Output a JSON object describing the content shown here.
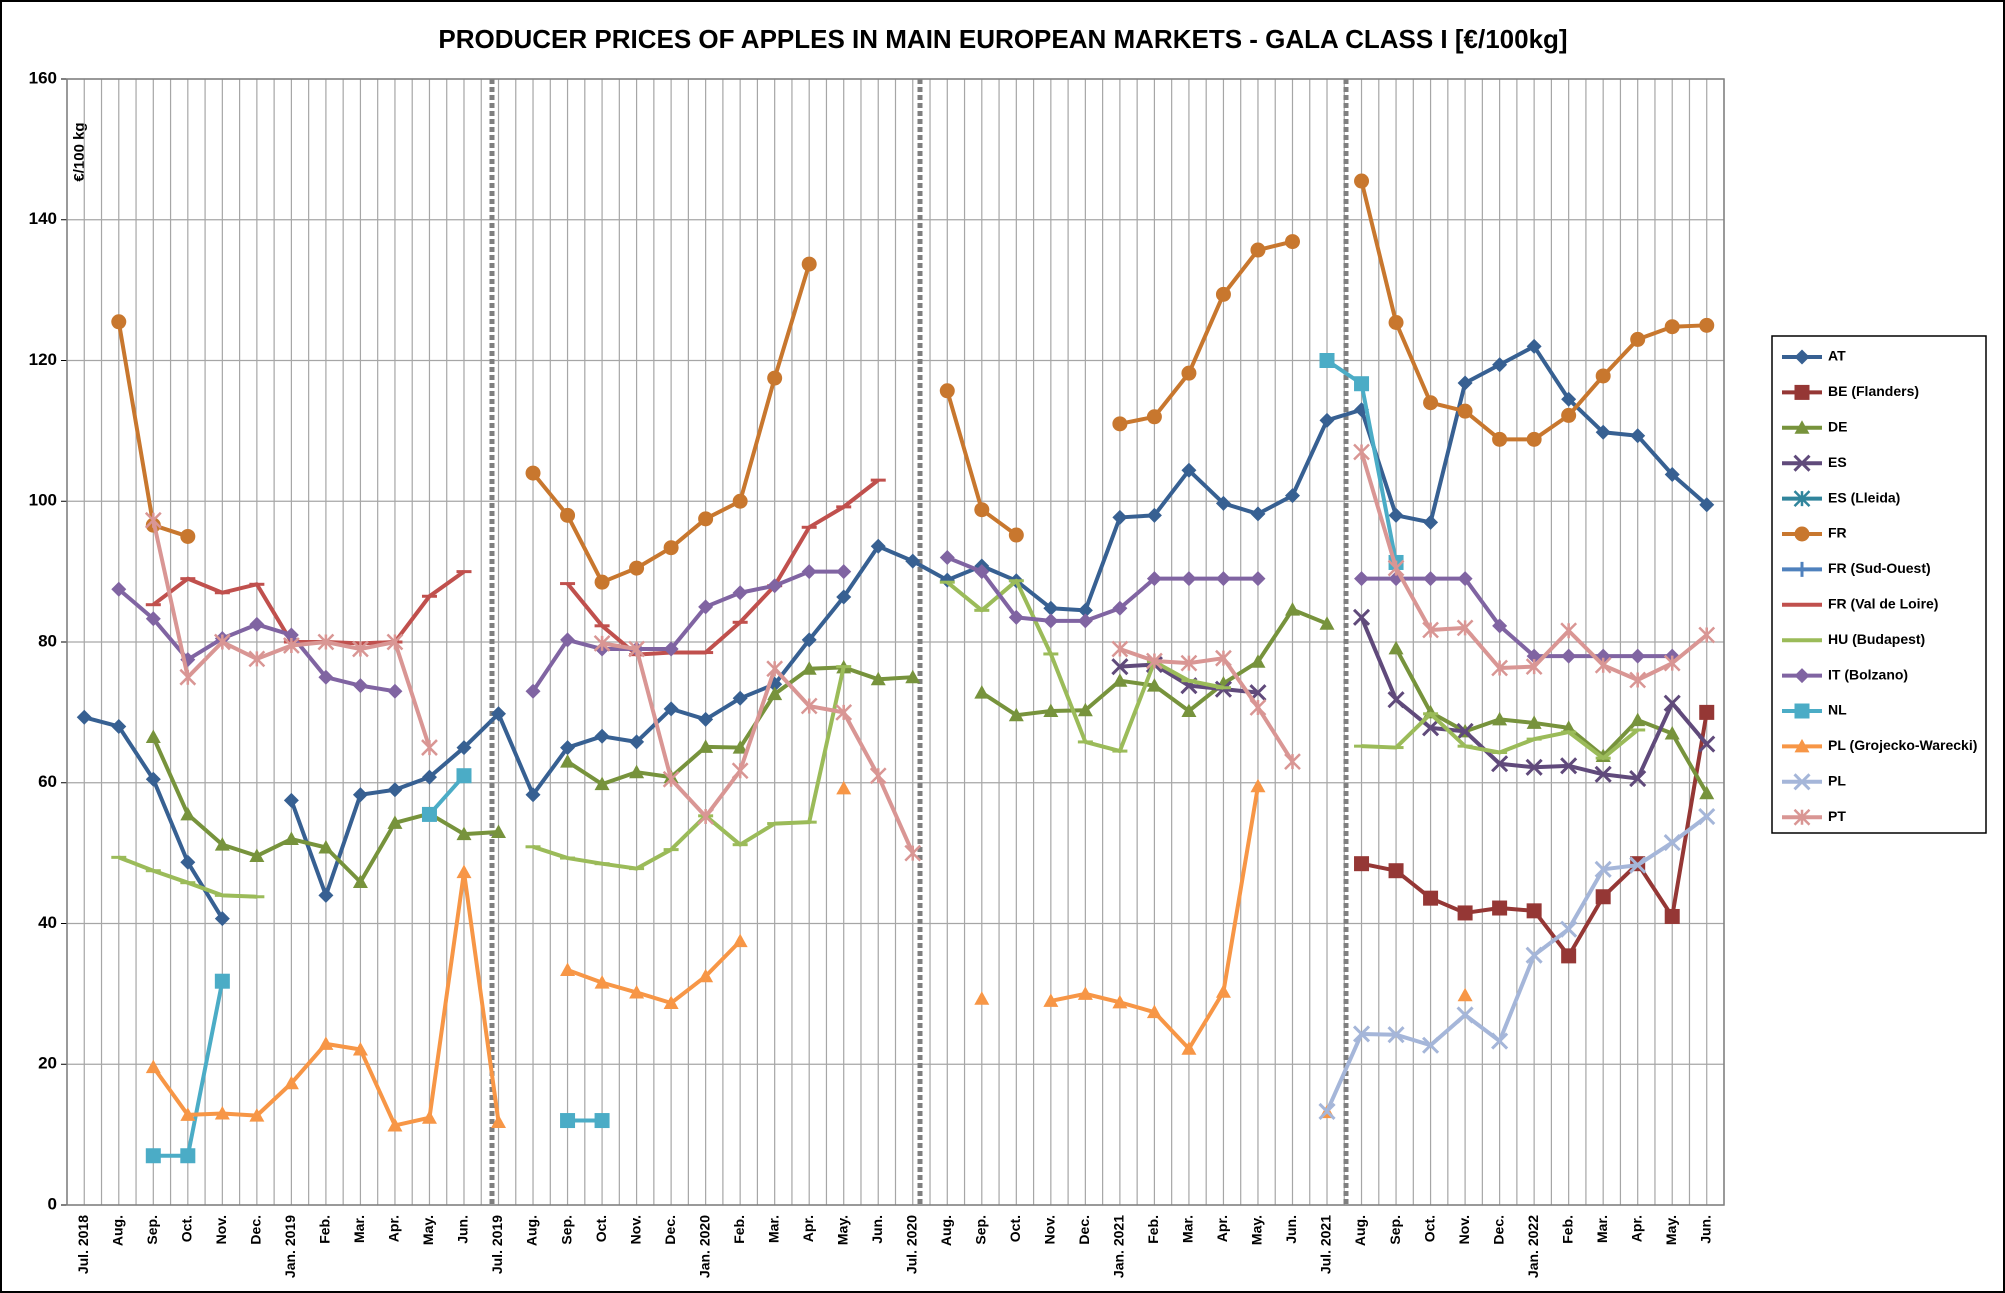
{
  "chart_data": {
    "type": "line",
    "title": "PRODUCER PRICES OF APPLES IN MAIN EUROPEAN MARKETS - GALA CLASS I [€/100kg]",
    "y_label": "€/100 kg",
    "categories": [
      "Jul. 2018",
      "Aug.",
      "Sep.",
      "Oct.",
      "Nov.",
      "Dec.",
      "Jan. 2019",
      "Feb.",
      "Mar.",
      "Apr.",
      "May.",
      "Jun.",
      "Jul. 2019",
      "Aug.",
      "Sep.",
      "Oct.",
      "Nov.",
      "Dec.",
      "Jan. 2020",
      "Feb.",
      "Mar.",
      "Apr.",
      "May.",
      "Jun.",
      "Jul. 2020",
      "Aug.",
      "Sep.",
      "Oct.",
      "Nov.",
      "Dec.",
      "Jan. 2021",
      "Feb.",
      "Mar.",
      "Apr.",
      "May.",
      "Jun.",
      "Jul. 2021",
      "Aug.",
      "Sep.",
      "Oct.",
      "Nov.",
      "Dec.",
      "Jan. 2022",
      "Feb.",
      "Mar.",
      "Apr.",
      "May.",
      "Jun."
    ],
    "ylim": [
      0,
      160
    ],
    "yticks": [
      0,
      20,
      40,
      60,
      80,
      100,
      120,
      140,
      160
    ],
    "grid": true,
    "legend": "right",
    "series": [
      {
        "name": "AT",
        "color": "#376092",
        "marker": "diamond",
        "values": [
          69.3,
          68,
          60.5,
          48.7,
          40.7,
          null,
          57.5,
          44,
          58.3,
          59,
          60.8,
          65,
          69.8,
          58.3,
          65,
          66.6,
          65.8,
          70.5,
          69,
          72,
          74,
          80.3,
          86.4,
          93.6,
          91.5,
          88.8,
          90.8,
          88.7,
          84.8,
          84.5,
          97.7,
          98,
          104.4,
          99.7,
          98.2,
          100.8,
          111.5,
          113,
          98,
          97,
          116.8,
          119.4,
          122,
          114.5,
          109.8,
          109.3,
          103.8,
          99.5
        ]
      },
      {
        "name": "BE (Flanders)",
        "color": "#953735",
        "marker": "square",
        "values": [
          null,
          null,
          null,
          null,
          null,
          null,
          null,
          null,
          null,
          null,
          null,
          null,
          null,
          null,
          null,
          null,
          null,
          null,
          null,
          null,
          null,
          null,
          null,
          null,
          null,
          null,
          null,
          null,
          null,
          null,
          null,
          null,
          null,
          null,
          null,
          null,
          null,
          48.5,
          47.5,
          43.6,
          41.5,
          42.2,
          41.8,
          35.4,
          43.8,
          48.5,
          41,
          70
        ]
      },
      {
        "name": "DE",
        "color": "#77933c",
        "marker": "triangle",
        "values": [
          null,
          null,
          66.5,
          55.5,
          51.2,
          49.6,
          52,
          50.8,
          45.9,
          54.3,
          55.6,
          52.7,
          53,
          null,
          63,
          59.8,
          61.5,
          60.8,
          65.1,
          65,
          72.6,
          76.2,
          76.4,
          74.7,
          75,
          null,
          72.8,
          69.6,
          70.2,
          70.3,
          74.5,
          73.8,
          70.2,
          74.1,
          77.2,
          84.6,
          82.6,
          null,
          79.1,
          70,
          67.3,
          69,
          68.5,
          67.8,
          63.8,
          68.9,
          67,
          58.5
        ]
      },
      {
        "name": "ES",
        "color": "#604a7b",
        "marker": "x",
        "values": [
          null,
          null,
          null,
          null,
          null,
          null,
          null,
          null,
          null,
          null,
          null,
          null,
          null,
          null,
          null,
          null,
          null,
          null,
          null,
          null,
          null,
          null,
          null,
          null,
          null,
          null,
          null,
          null,
          null,
          null,
          76.5,
          76.8,
          73.8,
          73.3,
          72.8,
          null,
          null,
          83.5,
          71.8,
          67.8,
          67.3,
          62.7,
          62.2,
          62.4,
          61.2,
          60.6,
          71.3,
          65.5
        ]
      },
      {
        "name": "ES (Lleida)",
        "color": "#31859c",
        "marker": "star",
        "values": [
          null,
          null,
          null,
          null,
          null,
          null,
          null,
          null,
          null,
          null,
          null,
          null,
          null,
          null,
          null,
          null,
          null,
          null,
          null,
          null,
          null,
          null,
          null,
          null,
          null,
          null,
          null,
          null,
          null,
          null,
          null,
          null,
          null,
          null,
          null,
          null,
          null,
          null,
          null,
          null,
          null,
          null,
          null,
          null,
          null,
          null,
          null,
          null
        ]
      },
      {
        "name": "FR",
        "color": "#c8772e",
        "marker": "circle",
        "values": [
          null,
          125.5,
          96.6,
          95,
          null,
          null,
          null,
          null,
          null,
          null,
          null,
          null,
          null,
          104,
          98,
          88.5,
          90.5,
          93.4,
          97.5,
          100,
          117.5,
          133.7,
          null,
          null,
          null,
          115.7,
          98.8,
          95.2,
          null,
          null,
          111,
          112,
          118.2,
          129.4,
          135.7,
          136.9,
          null,
          145.5,
          125.4,
          114,
          112.8,
          108.8,
          108.8,
          112.2,
          117.8,
          123,
          124.8,
          125
        ]
      },
      {
        "name": "FR (Sud-Ouest)",
        "color": "#4f81bd",
        "marker": "plus",
        "values": [
          null,
          null,
          null,
          null,
          null,
          null,
          null,
          null,
          null,
          null,
          null,
          null,
          null,
          null,
          null,
          null,
          null,
          null,
          null,
          null,
          null,
          null,
          null,
          null,
          null,
          null,
          null,
          null,
          null,
          null,
          null,
          null,
          null,
          null,
          null,
          null,
          null,
          null,
          null,
          null,
          null,
          null,
          null,
          null,
          null,
          null,
          null,
          null
        ]
      },
      {
        "name": "FR (Val de Loire)",
        "color": "#c0504d",
        "marker": "dash",
        "values": [
          null,
          null,
          85.3,
          89,
          87,
          88.2,
          80,
          80,
          79.8,
          80,
          86.5,
          90,
          null,
          null,
          88.3,
          82.3,
          78.2,
          78.5,
          78.5,
          82.8,
          88,
          96.3,
          99.2,
          103,
          null,
          null,
          null,
          null,
          null,
          null,
          null,
          null,
          null,
          null,
          null,
          null,
          null,
          null,
          null,
          null,
          null,
          null,
          null,
          null,
          null,
          null,
          null,
          null
        ]
      },
      {
        "name": "HU (Budapest)",
        "color": "#9bbb59",
        "marker": "dash",
        "values": [
          null,
          49.4,
          47.5,
          45.8,
          44,
          43.8,
          null,
          null,
          null,
          null,
          null,
          null,
          null,
          50.9,
          49.3,
          48.5,
          47.8,
          50.5,
          55.3,
          51.2,
          54.2,
          54.4,
          76.5,
          null,
          null,
          88.5,
          84.5,
          88.7,
          78.3,
          65.8,
          64.5,
          77.2,
          74.5,
          73.5,
          null,
          null,
          null,
          65.2,
          65,
          69.8,
          65.2,
          64.3,
          66.2,
          67.2,
          63.5,
          67.5,
          null,
          null
        ]
      },
      {
        "name": "IT (Bolzano)",
        "color": "#8064a2",
        "marker": "diamond",
        "values": [
          null,
          87.5,
          83.3,
          77.5,
          80.5,
          82.5,
          81,
          75,
          73.8,
          73,
          null,
          null,
          null,
          73,
          80.3,
          79,
          79,
          79,
          85,
          87,
          88,
          90,
          90,
          null,
          null,
          92,
          90,
          83.5,
          83,
          83,
          84.8,
          89,
          89,
          89,
          89,
          null,
          null,
          89,
          89,
          89,
          89,
          82.3,
          78,
          78,
          78,
          78,
          78,
          null
        ]
      },
      {
        "name": "NL",
        "color": "#4bacc6",
        "marker": "square",
        "values": [
          null,
          null,
          7,
          7,
          31.8,
          null,
          null,
          null,
          null,
          null,
          55.5,
          61,
          null,
          null,
          12,
          12,
          null,
          null,
          null,
          null,
          null,
          null,
          null,
          null,
          null,
          null,
          null,
          null,
          null,
          null,
          null,
          null,
          null,
          null,
          null,
          null,
          120,
          116.7,
          91.3,
          null,
          null,
          null,
          null,
          null,
          null,
          null,
          null,
          null
        ]
      },
      {
        "name": "PL (Grojecko-Warecki)",
        "color": "#f79646",
        "marker": "triangle",
        "values": [
          null,
          null,
          19.6,
          12.8,
          13,
          12.7,
          17.3,
          22.9,
          22.1,
          11.3,
          12.4,
          47.3,
          11.8,
          null,
          33.4,
          31.6,
          30.2,
          28.7,
          32.5,
          37.5,
          null,
          null,
          59.2,
          null,
          null,
          null,
          29.3,
          null,
          29,
          30,
          28.8,
          27.4,
          22.2,
          30.3,
          59.5,
          null,
          13.2,
          null,
          null,
          null,
          29.8,
          null,
          null,
          null,
          null,
          null,
          null,
          null
        ]
      },
      {
        "name": "PL",
        "color": "#a5b6d9",
        "marker": "x",
        "values": [
          null,
          null,
          null,
          null,
          null,
          null,
          null,
          null,
          null,
          null,
          null,
          null,
          null,
          null,
          null,
          null,
          null,
          null,
          null,
          null,
          null,
          null,
          null,
          null,
          null,
          null,
          null,
          null,
          null,
          null,
          null,
          null,
          null,
          null,
          null,
          null,
          13.3,
          24.3,
          24.2,
          22.7,
          27,
          23.3,
          35.5,
          39.2,
          47.7,
          48.3,
          51.5,
          55.2
        ]
      },
      {
        "name": "PT",
        "color": "#d99694",
        "marker": "star",
        "values": [
          null,
          null,
          97.3,
          75,
          80,
          77.6,
          79.5,
          80,
          79,
          80,
          65,
          null,
          null,
          null,
          null,
          79.8,
          79,
          60.5,
          55.2,
          61.7,
          76.2,
          70.9,
          70,
          61,
          50,
          null,
          null,
          null,
          null,
          null,
          79,
          77.3,
          77,
          77.7,
          70.7,
          63,
          null,
          107,
          90.5,
          81.7,
          82,
          76.3,
          76.5,
          81.6,
          76.7,
          74.6,
          77,
          81
        ]
      }
    ]
  }
}
